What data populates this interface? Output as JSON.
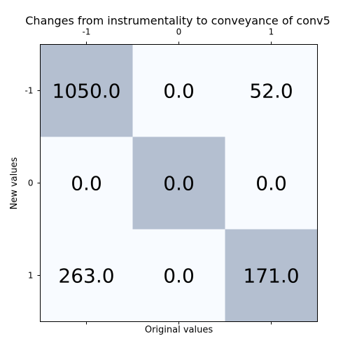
{
  "chart_data": {
    "type": "heatmap",
    "title": "Changes from instrumentality to conveyance of conv5",
    "xlabel": "Original values",
    "ylabel": "New values",
    "x_categories": [
      "-1",
      "0",
      "1"
    ],
    "y_categories": [
      "-1",
      "0",
      "1"
    ],
    "values": [
      [
        1050.0,
        0.0,
        52.0
      ],
      [
        0.0,
        0.0,
        0.0
      ],
      [
        263.0,
        0.0,
        171.0
      ]
    ],
    "cell_labels": [
      [
        "1050.0",
        "0.0",
        "52.0"
      ],
      [
        "0.0",
        "0.0",
        "0.0"
      ],
      [
        "263.0",
        "0.0",
        "171.0"
      ]
    ],
    "highlighted_cells": [
      [
        0,
        0
      ],
      [
        1,
        1
      ],
      [
        2,
        2
      ]
    ],
    "x_tick_position": "top and bottom (labels on top)",
    "grid": false,
    "colors": {
      "highlight": "#b4bfd0",
      "background": "#f8fbff"
    }
  }
}
